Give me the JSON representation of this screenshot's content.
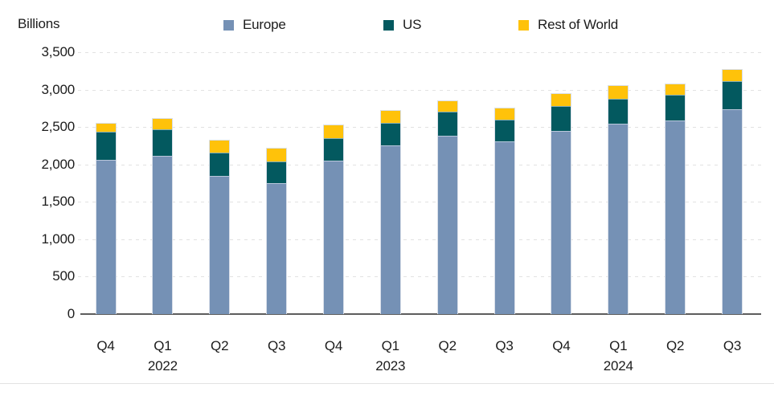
{
  "chart_data": {
    "type": "bar",
    "stacked": true,
    "title": "",
    "ylabel": "Billions",
    "xlabel": "",
    "categories": [
      "Q4",
      "Q1",
      "Q2",
      "Q3",
      "Q4",
      "Q1",
      "Q2",
      "Q3",
      "Q4",
      "Q1",
      "Q2",
      "Q3"
    ],
    "year_labels": [
      {
        "label": "2022",
        "category_index": 1
      },
      {
        "label": "2023",
        "category_index": 5
      },
      {
        "label": "2024",
        "category_index": 9
      }
    ],
    "series": [
      {
        "name": "Europe",
        "color": "#7591B5",
        "values": [
          2070,
          2120,
          1860,
          1760,
          2065,
          2270,
          2390,
          2315,
          2460,
          2555,
          2595,
          2750
        ]
      },
      {
        "name": "US",
        "color": "#03595F",
        "values": [
          380,
          360,
          315,
          290,
          295,
          300,
          330,
          295,
          335,
          340,
          345,
          375
        ]
      },
      {
        "name": "Rest of World",
        "color": "#FFC20A",
        "values": [
          110,
          145,
          160,
          180,
          180,
          165,
          135,
          155,
          160,
          165,
          150,
          155
        ]
      }
    ],
    "totals": [
      2560,
      2625,
      2335,
      2230,
      2540,
      2735,
      2855,
      2765,
      2955,
      3060,
      3090,
      3280
    ],
    "ylim": [
      0,
      3500
    ],
    "ytick_step": 500,
    "yticks": [
      "0",
      "500",
      "1,000",
      "1,500",
      "2,000",
      "2,500",
      "3,000",
      "3,500"
    ],
    "grid": "horizontal-dashed",
    "legend_position": "top"
  },
  "colors": {
    "europe": "#7591B5",
    "us": "#03595F",
    "rest_of_world": "#FFC20A",
    "bar_border": "#d9dfe9",
    "gridline": "#e2e2e2",
    "axis": "#5d5d5d",
    "text": "#1c1c1c",
    "bottom_rule": "#e3e3e3"
  }
}
